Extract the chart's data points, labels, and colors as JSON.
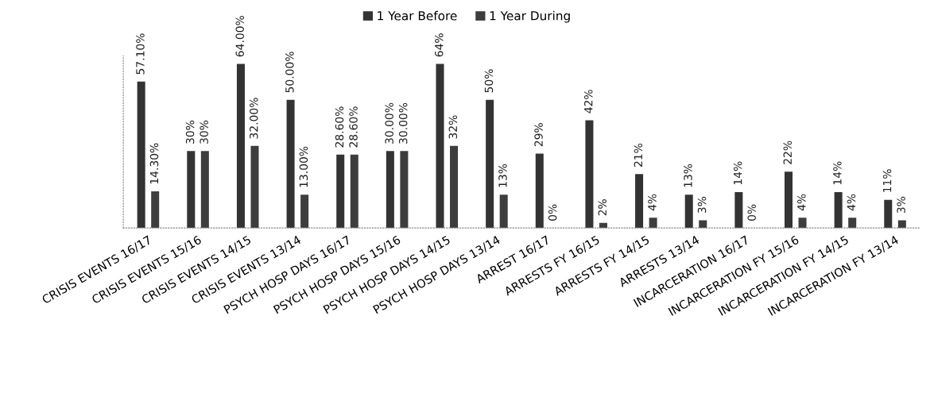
{
  "chart_data": {
    "type": "bar",
    "categories": [
      "CRISIS EVENTS 16/17",
      "CRISIS EVENTS 15/16",
      "CRISIS EVENTS 14/15",
      "CRISIS EVENTS 13/14",
      "PSYCH HOSP DAYS 16/17",
      "PSYCH HOSP DAYS 15/16",
      "PSYCH HOSP DAYS 14/15",
      "PSYCH HOSP DAYS 13/14",
      "ARREST 16/17",
      "ARRESTS FY 16/15",
      "ARRESTS FY 14/15",
      "ARRESTS 13/14",
      "INCARCERATION 16/17",
      "INCARCERATION FY 15/16",
      "INCARCERATION FY 14/15",
      "INCARCERATION FY 13/14"
    ],
    "series": [
      {
        "name": "1 Year Before",
        "color": "#333333",
        "values": [
          57.1,
          30,
          64,
          50,
          28.6,
          30,
          64,
          50,
          29,
          42,
          21,
          13,
          14,
          22,
          14,
          11
        ],
        "value_labels": [
          "57.10%",
          "30%",
          "64.00%",
          "50.00%",
          "28.60%",
          "30.00%",
          "64%",
          "50%",
          "29%",
          "42%",
          "21%",
          "13%",
          "14%",
          "22%",
          "14%",
          "11%"
        ]
      },
      {
        "name": "1 Year During",
        "color": "#3d3d3d",
        "values": [
          14.3,
          30,
          32,
          13,
          28.6,
          30,
          32,
          13,
          0,
          2,
          4,
          3,
          0,
          4,
          4,
          3
        ],
        "value_labels": [
          "14.30%",
          "30%",
          "32.00%",
          "13.00%",
          "28.60%",
          "30.00%",
          "32%",
          "13%",
          "0%",
          "2%",
          "4%",
          "3%",
          "0%",
          "4%",
          "4%",
          "3%"
        ]
      }
    ],
    "legend": "top",
    "grid": false
  }
}
